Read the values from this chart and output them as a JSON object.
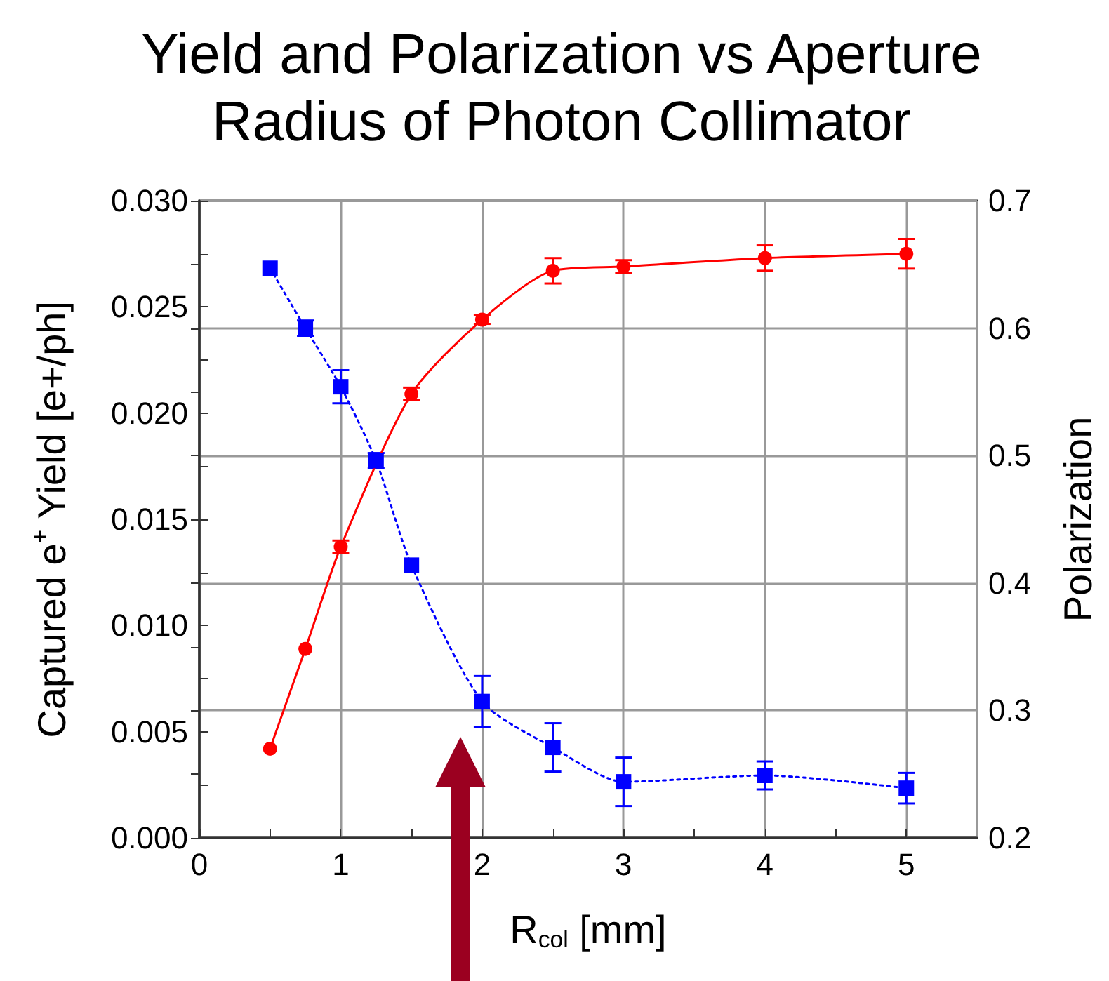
{
  "chart_data": {
    "type": "line",
    "title": "Yield and Polarization vs Aperture\nRadius of Photon Collimator",
    "xlabel": "R$_{col}$ [mm]",
    "ylabel": "Captured e$^{+}$ Yield [e+/ph]",
    "y2label": "Polarization",
    "x": [
      0.5,
      0.75,
      1.0,
      1.25,
      1.5,
      2.0,
      2.5,
      3.0,
      4.0,
      5.0
    ],
    "series": [
      {
        "color": "#ff0000",
        "marker": "circle",
        "line_style": "solid",
        "values": [
          0.0042,
          0.0089,
          0.0137,
          null,
          0.0209,
          0.0244,
          0.0267,
          0.0269,
          0.0273,
          0.0275
        ],
        "errors": [
          null,
          null,
          0.0003,
          null,
          0.0003,
          0.0002,
          0.0006,
          0.0003,
          0.0006,
          0.0007
        ]
      },
      {
        "color": "#0000ff",
        "marker": "square",
        "line_style": "dotted",
        "axis": "y2",
        "values": [
          0.647,
          0.6,
          0.554,
          0.496,
          0.414,
          0.307,
          0.271,
          0.244,
          0.249,
          0.239
        ],
        "errors": [
          null,
          0.006,
          0.013,
          0.006,
          null,
          0.02,
          0.019,
          0.019,
          0.011,
          0.012
        ]
      }
    ],
    "xlim": [
      0,
      5.5
    ],
    "xticks": [
      0,
      {
        "value": 0.5,
        "label": null
      },
      1,
      {
        "value": 1.5,
        "label": null
      },
      2,
      {
        "value": 2.5,
        "label": null
      },
      3,
      {
        "value": 3.5,
        "label": null
      },
      4,
      {
        "value": 4.5,
        "label": null
      },
      5
    ],
    "ylim": [
      0,
      0.03
    ],
    "yticks": [
      {
        "value": 0,
        "label": "0.000"
      },
      {
        "value": 0.0025,
        "label": null
      },
      {
        "value": 0.005,
        "label": "0.005"
      },
      {
        "value": 0.0075,
        "label": null
      },
      {
        "value": 0.01,
        "label": "0.010"
      },
      {
        "value": 0.0125,
        "label": null
      },
      {
        "value": 0.015,
        "label": "0.015"
      },
      {
        "value": 0.0175,
        "label": null
      },
      {
        "value": 0.02,
        "label": "0.020"
      },
      {
        "value": 0.0225,
        "label": null
      },
      {
        "value": 0.025,
        "label": "0.025"
      },
      {
        "value": 0.0275,
        "label": null
      },
      {
        "value": 0.03,
        "label": "0.030"
      }
    ],
    "y2lim": [
      0.2,
      0.7
    ],
    "y2ticks": [
      0.2,
      {
        "value": 0.25,
        "label": null
      },
      0.3,
      {
        "value": 0.35,
        "label": null
      },
      0.4,
      {
        "value": 0.45,
        "label": null
      },
      0.5,
      {
        "value": 0.55,
        "label": null
      },
      0.6,
      {
        "value": 0.65,
        "label": null
      },
      0.7
    ],
    "grid": true
  }
}
